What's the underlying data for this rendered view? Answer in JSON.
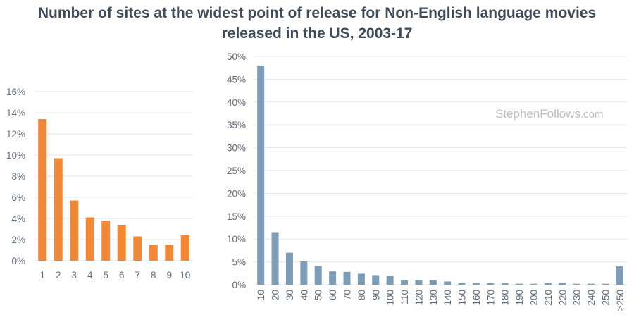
{
  "title_lines": [
    "Number of sites at the widest point of release for Non-English language movies",
    "released in the US, 2003-17"
  ],
  "watermark": "StephenFollows",
  "watermark_suffix": ".com",
  "colors": {
    "left_bars": "#f08838",
    "right_bars": "#7d9cb8",
    "grid": "#e3e6ea",
    "title": "#404b5a",
    "ticks": "#5f6b78"
  },
  "chart_data": [
    {
      "type": "bar",
      "title": "",
      "xlabel": "",
      "ylabel": "",
      "categories": [
        "1",
        "2",
        "3",
        "4",
        "5",
        "6",
        "7",
        "8",
        "9",
        "10"
      ],
      "values": [
        13.4,
        9.7,
        5.7,
        4.1,
        3.8,
        3.4,
        2.3,
        1.5,
        1.5,
        2.4
      ],
      "ylim": [
        0,
        16
      ],
      "yticks": [
        "0%",
        "2%",
        "4%",
        "6%",
        "8%",
        "10%",
        "12%",
        "14%",
        "16%"
      ],
      "unit": "%",
      "grid": true,
      "color": "#f08838"
    },
    {
      "type": "bar",
      "title": "",
      "xlabel": "",
      "ylabel": "",
      "categories": [
        "10",
        "20",
        "30",
        "40",
        "50",
        "60",
        "70",
        "80",
        "90",
        "100",
        "110",
        "120",
        "130",
        "140",
        "150",
        "160",
        "170",
        "180",
        "190",
        "200",
        "210",
        "220",
        "230",
        "240",
        "250",
        ">250"
      ],
      "values": [
        48.0,
        11.5,
        7.0,
        5.1,
        4.1,
        2.9,
        2.8,
        2.4,
        2.1,
        2.0,
        1.0,
        1.0,
        1.0,
        0.7,
        0.4,
        0.4,
        0.3,
        0.3,
        0.2,
        0.2,
        0.3,
        0.4,
        0.2,
        0.2,
        0.2,
        4.0
      ],
      "ylim": [
        0,
        50
      ],
      "yticks": [
        "0%",
        "5%",
        "10%",
        "15%",
        "20%",
        "25%",
        "30%",
        "35%",
        "40%",
        "45%",
        "50%"
      ],
      "unit": "%",
      "grid": true,
      "color": "#7d9cb8"
    }
  ]
}
